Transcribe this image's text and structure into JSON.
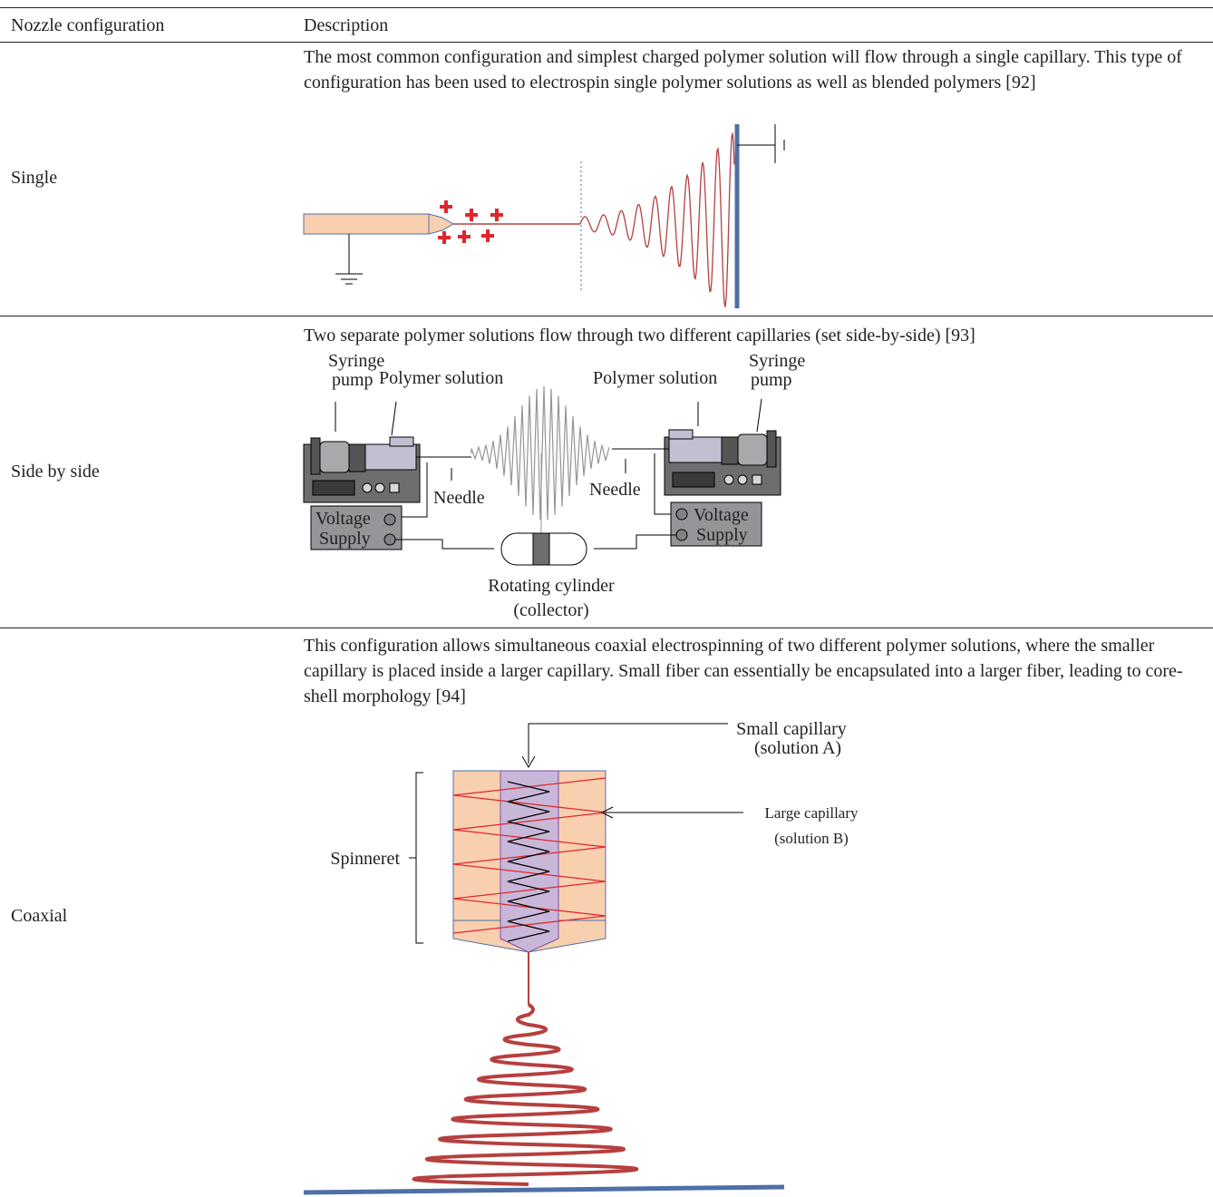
{
  "table": {
    "header": [
      "Nozzle configuration",
      "Description"
    ],
    "rows": [
      {
        "configuration": "Single",
        "description": "The most common configuration and simplest charged polymer solution will flow through a single capillary. This type of configuration has been used to electrospin single polymer solutions as well as blended polymers [92]"
      },
      {
        "configuration": "Side by side",
        "description": "Two separate polymer solutions flow through two different capillaries (set side-by-side) [93]",
        "figure": {
          "labels": [
            "Syringe",
            "pump",
            "Polymer solution",
            "Polymer solution",
            "Syringe",
            "pump",
            "Needle",
            "Needle",
            "Voltage",
            "Supply",
            "Voltage",
            "Supply",
            "Rotating cylinder",
            "(collector)"
          ]
        }
      },
      {
        "configuration": "Coaxial",
        "description": "This configuration allows simultaneous coaxial electrospinning of two different polymer solutions, where the smaller capillary is placed inside a larger capillary. Small fiber can essentially be encapsulated into a larger fiber, leading to core-shell morphology [94]",
        "figure": {
          "labels": [
            "Small capillary",
            "(solution A)",
            "Large capillary",
            "(solution B)",
            "Spinneret"
          ]
        }
      }
    ]
  }
}
